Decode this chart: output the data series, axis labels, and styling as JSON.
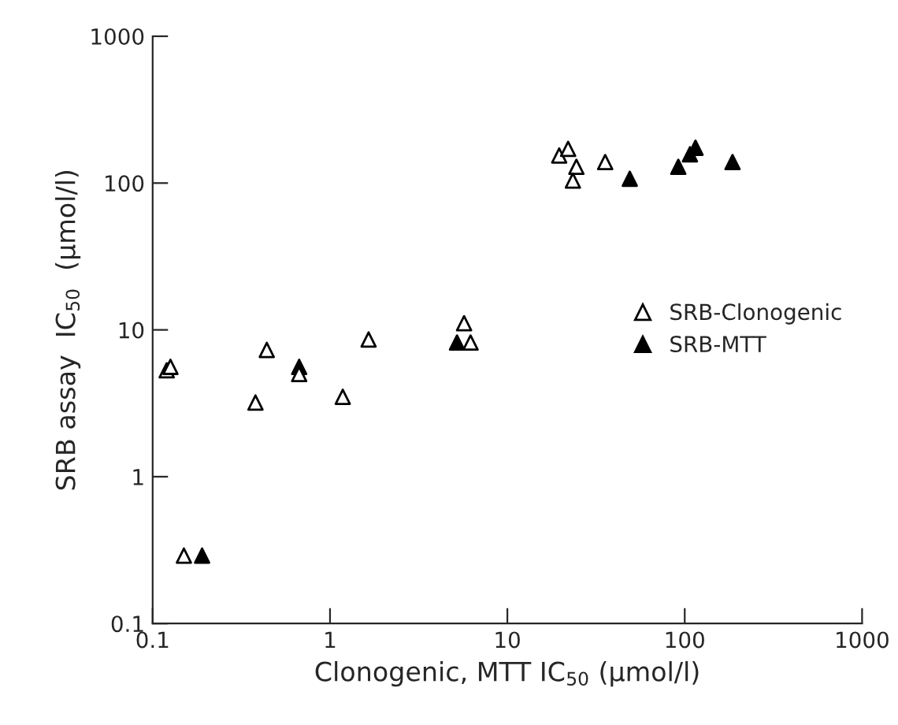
{
  "chart_data": {
    "type": "scatter",
    "log": "xy",
    "xlabel": "Clonogenic, MTT IC$_{50}$ (μmol/l)",
    "ylabel": "SRB assay  IC$_{50}$  (μmol/l)",
    "xlim": [
      0.1,
      1000
    ],
    "ylim": [
      0.1,
      1000
    ],
    "xticks": [
      0.1,
      1,
      10,
      100,
      1000
    ],
    "yticks": [
      0.1,
      1,
      10,
      100,
      1000
    ],
    "grid": false,
    "legend": "right",
    "marker": "triangle",
    "series": [
      {
        "name": "SRB-Clonogenic",
        "color": "#ffffff",
        "x": [
          0.12,
          0.126,
          0.15,
          0.44,
          0.38,
          0.67,
          1.18,
          1.65,
          5.7,
          6.2,
          19.6,
          22,
          24.5,
          23.4,
          35.6
        ],
        "values": [
          5.3,
          5.6,
          0.29,
          7.3,
          3.2,
          5.0,
          3.5,
          8.6,
          11.1,
          8.2,
          154,
          171,
          129,
          104,
          139
        ]
      },
      {
        "name": "SRB-MTT",
        "color": "#000000",
        "x": [
          0.19,
          0.67,
          5.2,
          49,
          92,
          107,
          115,
          186
        ],
        "values": [
          0.29,
          5.6,
          8.2,
          107,
          129,
          157,
          174,
          139
        ]
      }
    ]
  }
}
